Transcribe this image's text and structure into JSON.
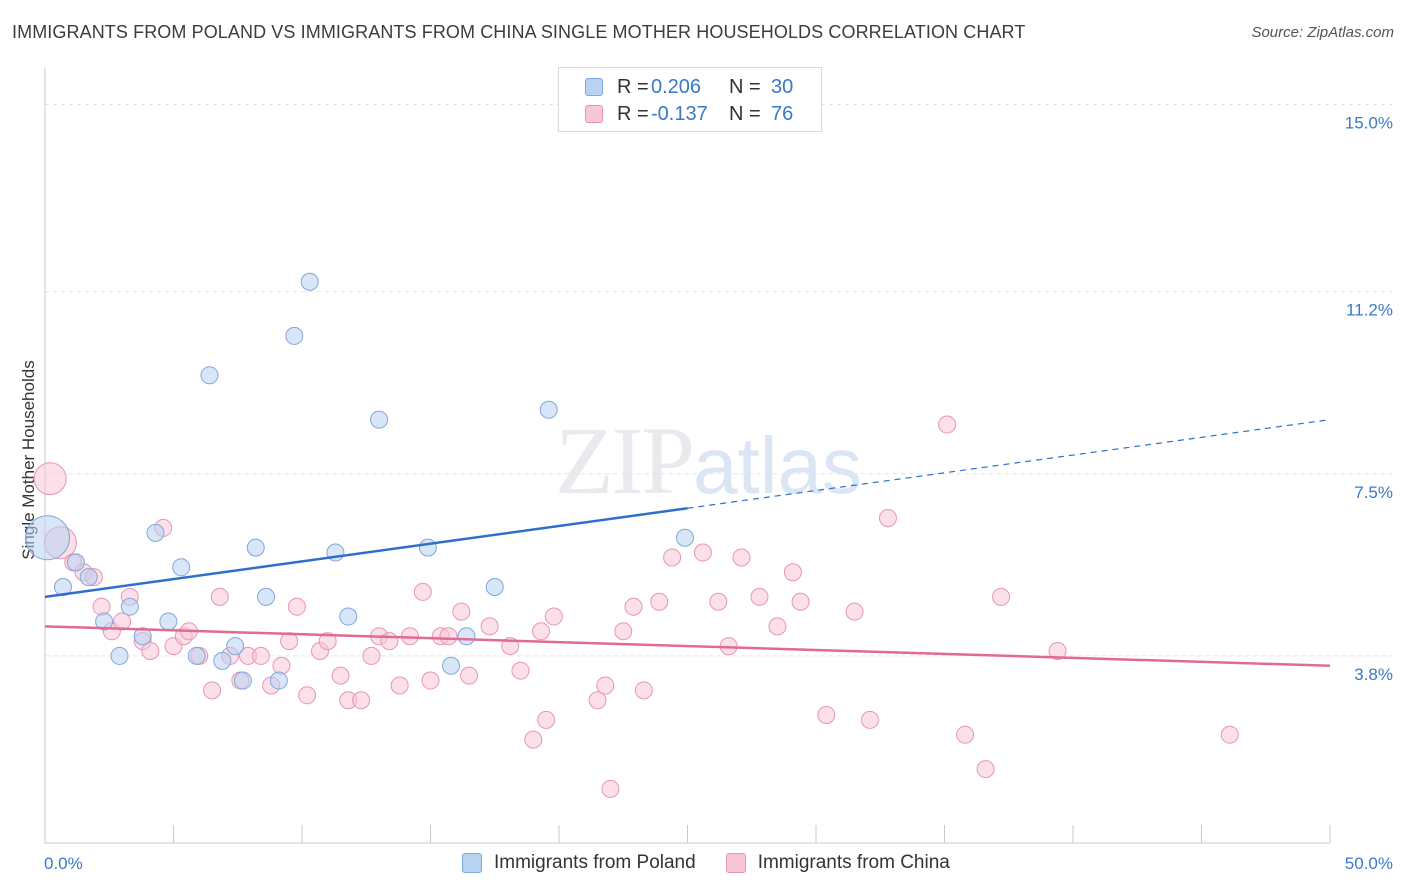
{
  "title": "IMMIGRANTS FROM POLAND VS IMMIGRANTS FROM CHINA SINGLE MOTHER HOUSEHOLDS CORRELATION CHART",
  "source": "Source: ZipAtlas.com",
  "watermark": {
    "zip": "ZIP",
    "atlas": "atlas"
  },
  "legend": {
    "poland": {
      "r_label": "R =",
      "r_value": "0.206",
      "n_label": "N =",
      "n_value": "30"
    },
    "china": {
      "r_label": "R =",
      "r_value": "-0.137",
      "n_label": "N =",
      "n_value": "76"
    }
  },
  "colors": {
    "poland_fill": "#b8d2f2",
    "poland_stroke": "#7fa8dc",
    "poland_line": "#2f6fcc",
    "china_fill": "#f8c7d7",
    "china_stroke": "#e895b2",
    "china_line": "#e06a94",
    "tick_text": "#3a78c9",
    "grid": "#e3e3e3"
  },
  "chart_data": {
    "type": "scatter",
    "title": "IMMIGRANTS FROM POLAND VS IMMIGRANTS FROM CHINA SINGLE MOTHER HOUSEHOLDS CORRELATION CHART",
    "xlabel": "",
    "ylabel": "Single Mother Households",
    "xlim": [
      0,
      50
    ],
    "ylim": [
      0,
      15.6
    ],
    "x_tick_labels": [
      "0.0%",
      "50.0%"
    ],
    "y_ticks": [
      3.8,
      7.5,
      11.2,
      15.0
    ],
    "y_tick_labels": [
      "3.8%",
      "7.5%",
      "11.2%",
      "15.0%"
    ],
    "grid": true,
    "series": [
      {
        "name": "Immigrants from Poland",
        "trend": {
          "x": [
            0,
            25
          ],
          "y": [
            5.0,
            6.8
          ],
          "dashed_to": [
            50,
            8.6
          ]
        },
        "points": [
          {
            "x": 0.1,
            "y": 6.2,
            "s": 3
          },
          {
            "x": 0.7,
            "y": 5.2,
            "s": 1
          },
          {
            "x": 1.2,
            "y": 5.7,
            "s": 1
          },
          {
            "x": 1.7,
            "y": 5.4,
            "s": 1
          },
          {
            "x": 2.3,
            "y": 4.5,
            "s": 1
          },
          {
            "x": 2.9,
            "y": 3.8,
            "s": 1
          },
          {
            "x": 3.3,
            "y": 4.8,
            "s": 1
          },
          {
            "x": 3.8,
            "y": 4.2,
            "s": 1
          },
          {
            "x": 4.3,
            "y": 6.3,
            "s": 1
          },
          {
            "x": 4.8,
            "y": 4.5,
            "s": 1
          },
          {
            "x": 5.3,
            "y": 5.6,
            "s": 1
          },
          {
            "x": 5.9,
            "y": 3.8,
            "s": 1
          },
          {
            "x": 6.4,
            "y": 9.5,
            "s": 1
          },
          {
            "x": 6.9,
            "y": 3.7,
            "s": 1
          },
          {
            "x": 7.4,
            "y": 4.0,
            "s": 1
          },
          {
            "x": 7.7,
            "y": 3.3,
            "s": 1
          },
          {
            "x": 8.2,
            "y": 6.0,
            "s": 1
          },
          {
            "x": 8.6,
            "y": 5.0,
            "s": 1
          },
          {
            "x": 9.1,
            "y": 3.3,
            "s": 1
          },
          {
            "x": 9.7,
            "y": 10.3,
            "s": 1
          },
          {
            "x": 10.3,
            "y": 11.4,
            "s": 1
          },
          {
            "x": 11.3,
            "y": 5.9,
            "s": 1
          },
          {
            "x": 11.8,
            "y": 4.6,
            "s": 1
          },
          {
            "x": 13.0,
            "y": 8.6,
            "s": 1
          },
          {
            "x": 14.9,
            "y": 6.0,
            "s": 1
          },
          {
            "x": 15.8,
            "y": 3.6,
            "s": 1
          },
          {
            "x": 16.4,
            "y": 4.2,
            "s": 1
          },
          {
            "x": 17.5,
            "y": 5.2,
            "s": 1
          },
          {
            "x": 19.6,
            "y": 8.8,
            "s": 1
          },
          {
            "x": 24.9,
            "y": 6.2,
            "s": 1
          }
        ]
      },
      {
        "name": "Immigrants from China",
        "trend": {
          "x": [
            0,
            50
          ],
          "y": [
            4.4,
            3.6
          ]
        },
        "points": [
          {
            "x": 0.2,
            "y": 7.4,
            "s": 2
          },
          {
            "x": 0.6,
            "y": 6.1,
            "s": 2
          },
          {
            "x": 1.1,
            "y": 5.7,
            "s": 1
          },
          {
            "x": 1.5,
            "y": 5.5,
            "s": 1
          },
          {
            "x": 1.9,
            "y": 5.4,
            "s": 1
          },
          {
            "x": 2.2,
            "y": 4.8,
            "s": 1
          },
          {
            "x": 2.6,
            "y": 4.3,
            "s": 1
          },
          {
            "x": 3.0,
            "y": 4.5,
            "s": 1
          },
          {
            "x": 3.3,
            "y": 5.0,
            "s": 1
          },
          {
            "x": 3.8,
            "y": 4.1,
            "s": 1
          },
          {
            "x": 4.1,
            "y": 3.9,
            "s": 1
          },
          {
            "x": 4.6,
            "y": 6.4,
            "s": 1
          },
          {
            "x": 5.0,
            "y": 4.0,
            "s": 1
          },
          {
            "x": 5.4,
            "y": 4.2,
            "s": 1
          },
          {
            "x": 5.6,
            "y": 4.3,
            "s": 1
          },
          {
            "x": 6.0,
            "y": 3.8,
            "s": 1
          },
          {
            "x": 6.5,
            "y": 3.1,
            "s": 1
          },
          {
            "x": 6.8,
            "y": 5.0,
            "s": 1
          },
          {
            "x": 7.2,
            "y": 3.8,
            "s": 1
          },
          {
            "x": 7.6,
            "y": 3.3,
            "s": 1
          },
          {
            "x": 7.9,
            "y": 3.8,
            "s": 1
          },
          {
            "x": 8.4,
            "y": 3.8,
            "s": 1
          },
          {
            "x": 8.8,
            "y": 3.2,
            "s": 1
          },
          {
            "x": 9.2,
            "y": 3.6,
            "s": 1
          },
          {
            "x": 9.5,
            "y": 4.1,
            "s": 1
          },
          {
            "x": 9.8,
            "y": 4.8,
            "s": 1
          },
          {
            "x": 10.2,
            "y": 3.0,
            "s": 1
          },
          {
            "x": 10.7,
            "y": 3.9,
            "s": 1
          },
          {
            "x": 11.0,
            "y": 4.1,
            "s": 1
          },
          {
            "x": 11.5,
            "y": 3.4,
            "s": 1
          },
          {
            "x": 11.8,
            "y": 2.9,
            "s": 1
          },
          {
            "x": 12.3,
            "y": 2.9,
            "s": 1
          },
          {
            "x": 12.7,
            "y": 3.8,
            "s": 1
          },
          {
            "x": 13.0,
            "y": 4.2,
            "s": 1
          },
          {
            "x": 13.4,
            "y": 4.1,
            "s": 1
          },
          {
            "x": 13.8,
            "y": 3.2,
            "s": 1
          },
          {
            "x": 14.2,
            "y": 4.2,
            "s": 1
          },
          {
            "x": 14.7,
            "y": 5.1,
            "s": 1
          },
          {
            "x": 15.0,
            "y": 3.3,
            "s": 1
          },
          {
            "x": 15.4,
            "y": 4.2,
            "s": 1
          },
          {
            "x": 15.7,
            "y": 4.2,
            "s": 1
          },
          {
            "x": 16.2,
            "y": 4.7,
            "s": 1
          },
          {
            "x": 16.5,
            "y": 3.4,
            "s": 1
          },
          {
            "x": 17.3,
            "y": 4.4,
            "s": 1
          },
          {
            "x": 18.1,
            "y": 4.0,
            "s": 1
          },
          {
            "x": 18.5,
            "y": 3.5,
            "s": 1
          },
          {
            "x": 19.0,
            "y": 2.1,
            "s": 1
          },
          {
            "x": 19.3,
            "y": 4.3,
            "s": 1
          },
          {
            "x": 19.5,
            "y": 2.5,
            "s": 1
          },
          {
            "x": 19.8,
            "y": 4.6,
            "s": 1
          },
          {
            "x": 21.5,
            "y": 2.9,
            "s": 1
          },
          {
            "x": 21.8,
            "y": 3.2,
            "s": 1
          },
          {
            "x": 22.0,
            "y": 1.1,
            "s": 1
          },
          {
            "x": 22.5,
            "y": 4.3,
            "s": 1
          },
          {
            "x": 22.9,
            "y": 4.8,
            "s": 1
          },
          {
            "x": 23.3,
            "y": 3.1,
            "s": 1
          },
          {
            "x": 23.9,
            "y": 4.9,
            "s": 1
          },
          {
            "x": 24.4,
            "y": 5.8,
            "s": 1
          },
          {
            "x": 25.6,
            "y": 5.9,
            "s": 1
          },
          {
            "x": 26.2,
            "y": 4.9,
            "s": 1
          },
          {
            "x": 26.6,
            "y": 4.0,
            "s": 1
          },
          {
            "x": 27.1,
            "y": 5.8,
            "s": 1
          },
          {
            "x": 27.8,
            "y": 5.0,
            "s": 1
          },
          {
            "x": 28.5,
            "y": 4.4,
            "s": 1
          },
          {
            "x": 29.1,
            "y": 5.5,
            "s": 1
          },
          {
            "x": 29.4,
            "y": 4.9,
            "s": 1
          },
          {
            "x": 30.4,
            "y": 2.6,
            "s": 1
          },
          {
            "x": 31.5,
            "y": 4.7,
            "s": 1
          },
          {
            "x": 32.1,
            "y": 2.5,
            "s": 1
          },
          {
            "x": 32.8,
            "y": 6.6,
            "s": 1
          },
          {
            "x": 35.1,
            "y": 8.5,
            "s": 1
          },
          {
            "x": 35.8,
            "y": 2.2,
            "s": 1
          },
          {
            "x": 36.6,
            "y": 1.5,
            "s": 1
          },
          {
            "x": 37.2,
            "y": 5.0,
            "s": 1
          },
          {
            "x": 39.4,
            "y": 3.9,
            "s": 1
          },
          {
            "x": 46.1,
            "y": 2.2,
            "s": 1
          }
        ]
      }
    ]
  }
}
